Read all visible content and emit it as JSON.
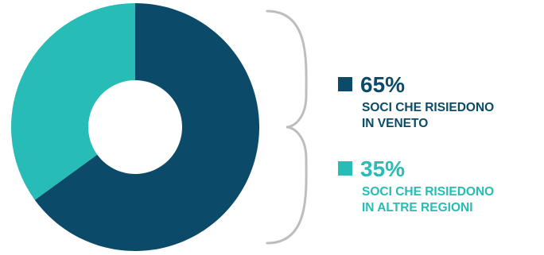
{
  "chart_data": {
    "type": "pie",
    "donut": true,
    "slices": [
      {
        "label_lines": [
          "SOCI CHE RISIEDONO",
          "IN VENETO"
        ],
        "value": 65,
        "display": "65%",
        "color": "#0b4a68"
      },
      {
        "label_lines": [
          "SOCI CHE RISIEDONO",
          "IN ALTRE REGIONI"
        ],
        "value": 35,
        "display": "35%",
        "color": "#27bcb5"
      }
    ],
    "legend_position": "right"
  },
  "colors": {
    "brace": "#bdbdbd",
    "background": "#ffffff"
  }
}
